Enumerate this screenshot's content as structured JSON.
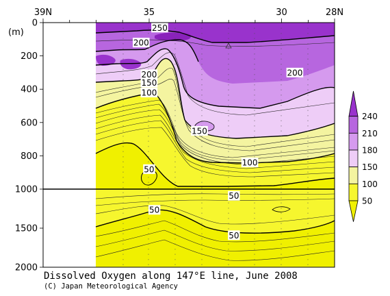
{
  "chart_data": {
    "type": "contour",
    "title": "Dissolved Oxygen along 147°E line, June 2008",
    "credit": "(C) Japan Meteorological Agency",
    "x_axis": {
      "ticks": [
        {
          "value": 39,
          "label": "39N"
        },
        {
          "value": 35,
          "label": "35"
        },
        {
          "value": 30,
          "label": "30"
        },
        {
          "value": 28,
          "label": "28N"
        }
      ],
      "range": [
        39,
        28
      ]
    },
    "y_axis": {
      "unit": "(m)",
      "upper_ticks": [
        "0",
        "200",
        "400",
        "600",
        "800",
        "1000"
      ],
      "lower_ticks": [
        "1500",
        "2000"
      ],
      "upper_range": [
        0,
        1000
      ],
      "lower_range": [
        1000,
        2000
      ]
    },
    "data_start_lat": 35.8,
    "colorbar": {
      "levels": [
        "240",
        "210",
        "180",
        "150",
        "100",
        "50"
      ],
      "colors": [
        "#9933cc",
        "#b766df",
        "#d59aee",
        "#eecdf7",
        "#f4f4a0",
        "#f6f62e",
        "#f0f000"
      ]
    },
    "contour_labels": [
      {
        "text": "250",
        "lat": 34.6,
        "depth": 30
      },
      {
        "text": "200",
        "lat": 35.3,
        "depth": 120
      },
      {
        "text": "200",
        "lat": 35.0,
        "depth": 310
      },
      {
        "text": "150",
        "lat": 35.0,
        "depth": 360
      },
      {
        "text": "100",
        "lat": 35.0,
        "depth": 420
      },
      {
        "text": "200",
        "lat": 29.5,
        "depth": 300
      },
      {
        "text": "150",
        "lat": 33.1,
        "depth": 650
      },
      {
        "text": "100",
        "lat": 31.2,
        "depth": 840
      },
      {
        "text": "50",
        "lat": 35.0,
        "depth": 880
      },
      {
        "text": "50",
        "lat": 31.8,
        "depth": 1085
      },
      {
        "text": "50",
        "lat": 34.8,
        "depth": 1265
      },
      {
        "text": "50",
        "lat": 31.8,
        "depth": 1590
      }
    ]
  }
}
